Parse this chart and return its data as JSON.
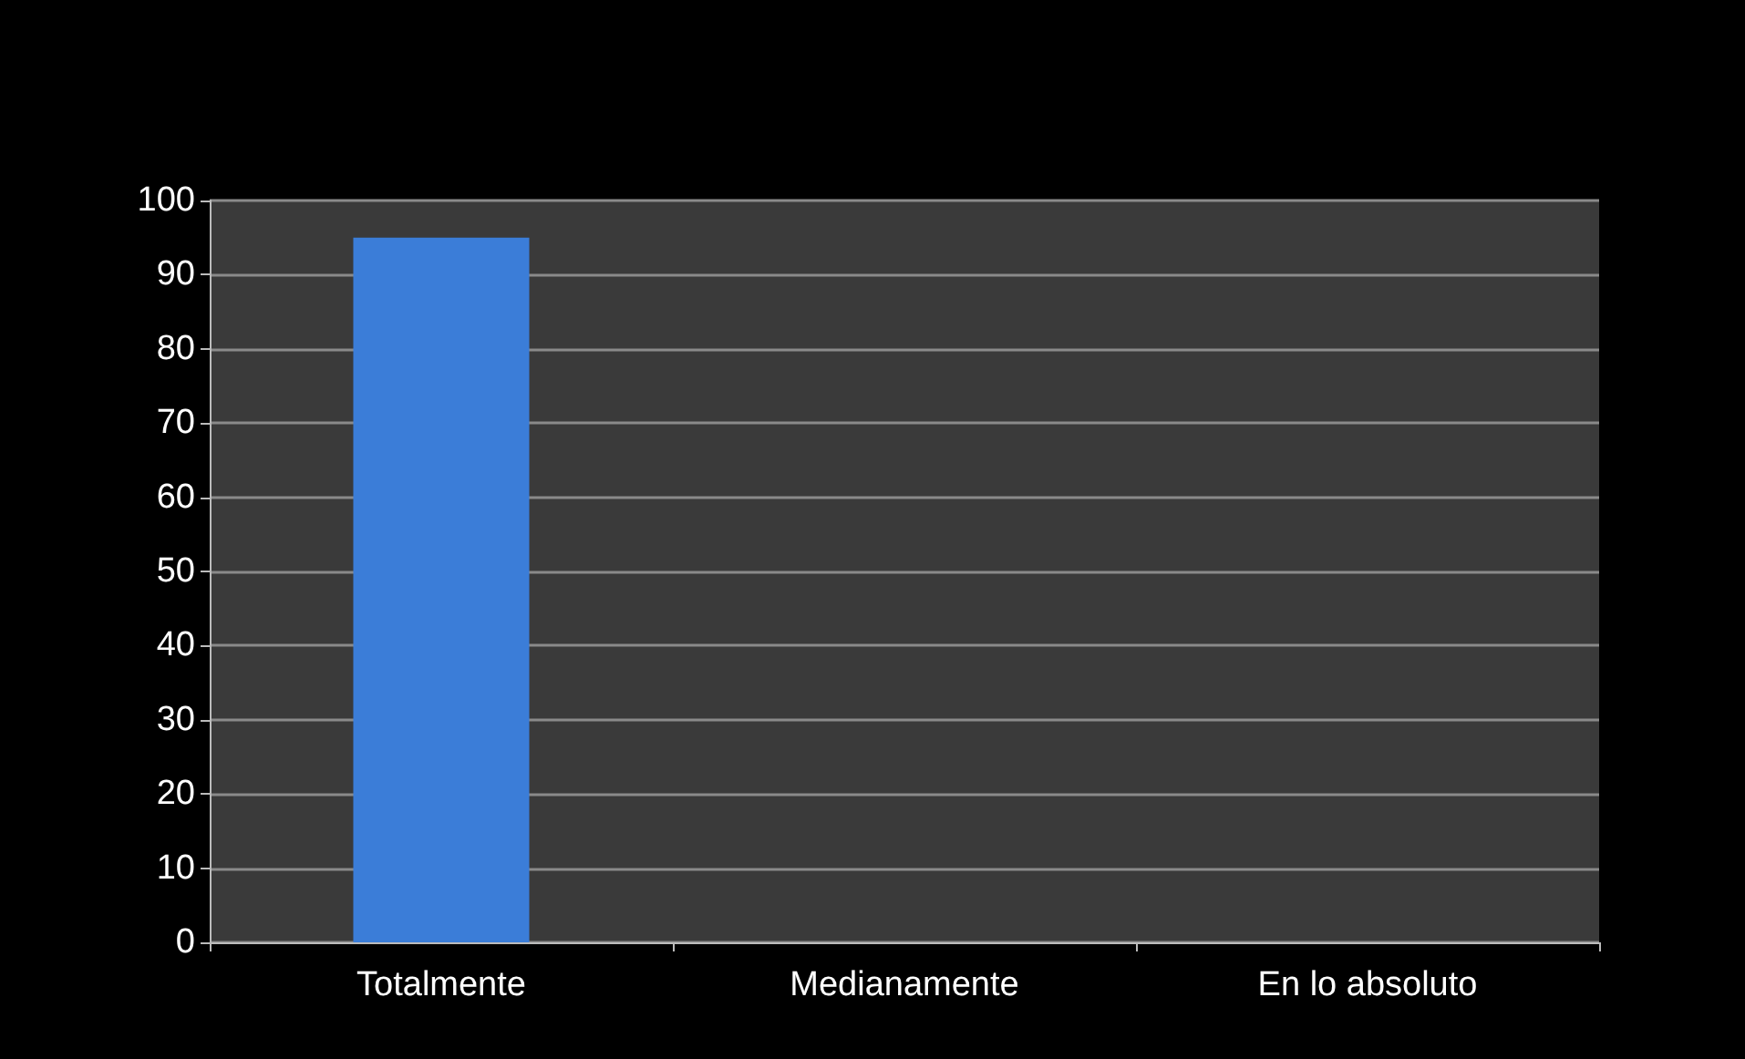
{
  "chart_data": {
    "type": "bar",
    "categories": [
      "Totalmente",
      "Medianamente",
      "En lo absoluto"
    ],
    "values": [
      95,
      0,
      0
    ],
    "color": "#3b7dd8",
    "ylim": [
      0,
      100
    ],
    "yticks": [
      0,
      10,
      20,
      30,
      40,
      50,
      60,
      70,
      80,
      90,
      100
    ],
    "grid": "y"
  }
}
